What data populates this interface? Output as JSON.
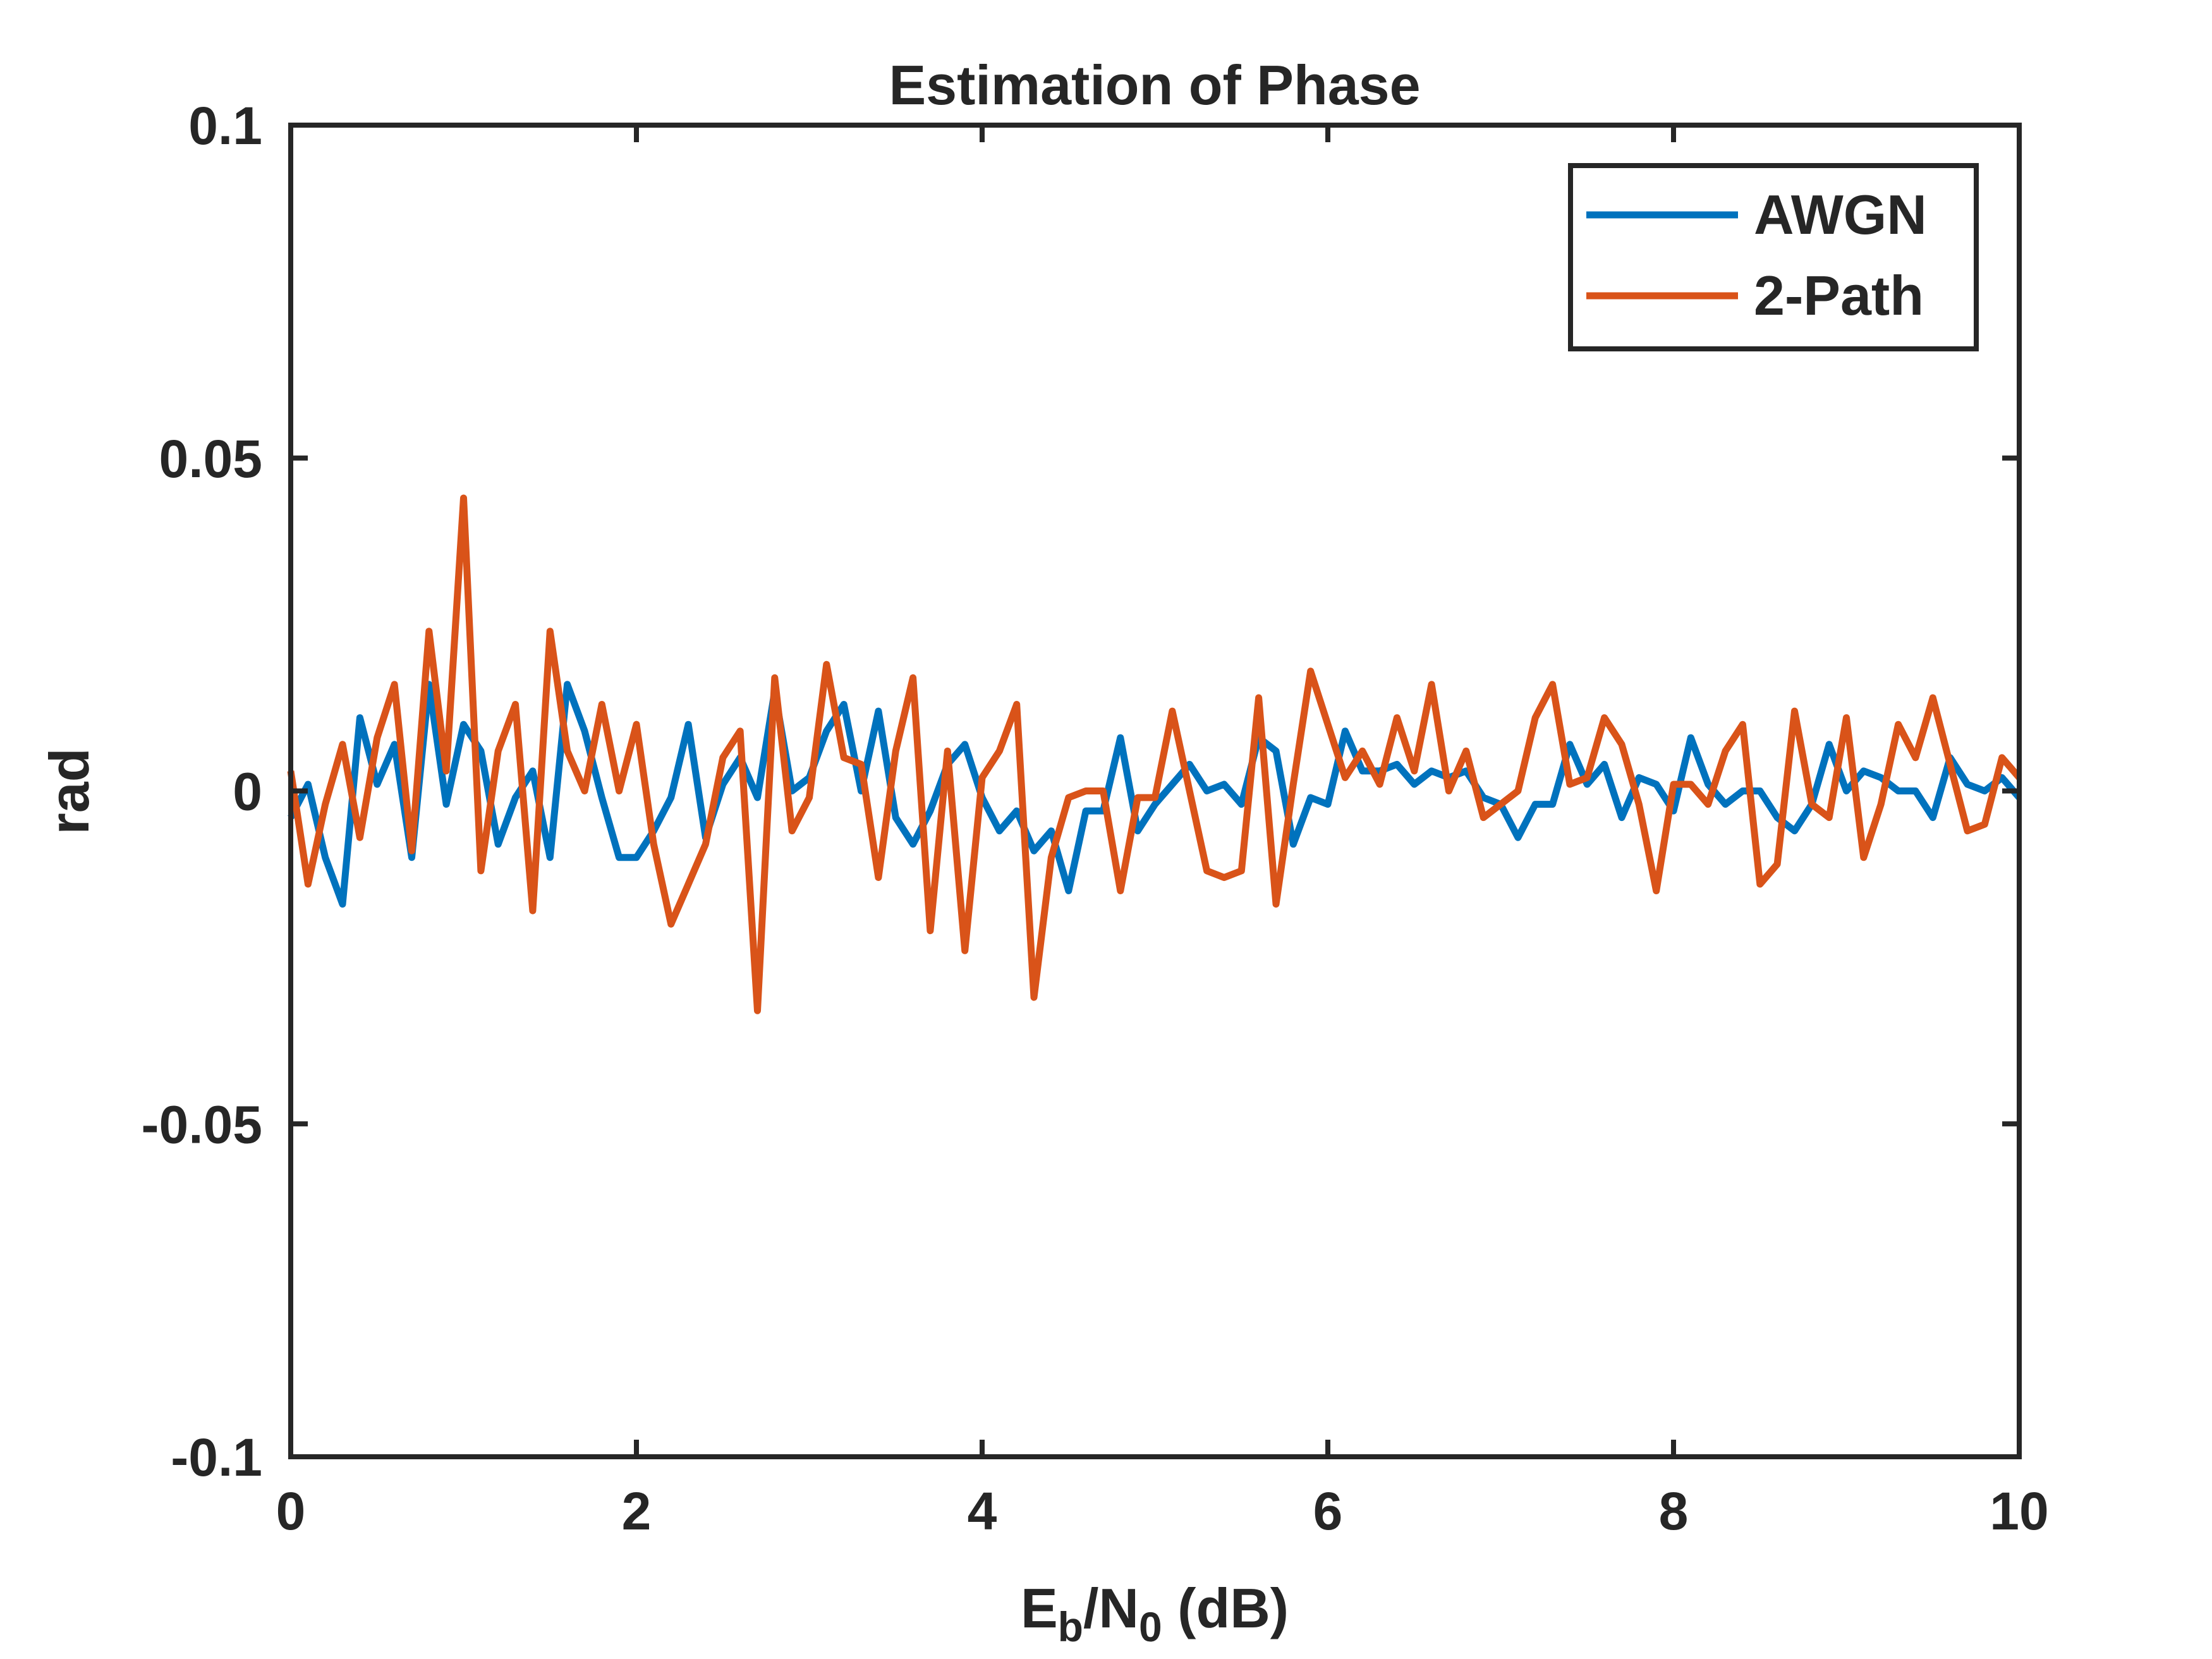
{
  "chart_data": {
    "type": "line",
    "title": "Estimation of Phase",
    "xlabel": {
      "main": "E",
      "sub1": "b",
      "mid": "/N",
      "sub2": "0",
      "tail": " (dB)"
    },
    "ylabel": "rad",
    "xlim": [
      0,
      10
    ],
    "ylim": [
      -0.1,
      0.1
    ],
    "xticks": [
      0,
      2,
      4,
      6,
      8,
      10
    ],
    "xtick_labels": [
      "0",
      "2",
      "4",
      "6",
      "8",
      "10"
    ],
    "yticks": [
      0.1,
      0.05,
      0,
      -0.05,
      -0.1
    ],
    "ytick_labels": [
      "0.1",
      "0.05",
      "0",
      "-0.05",
      "-0.1"
    ],
    "grid": false,
    "legend_position": "top-right",
    "x_step": 0.1,
    "series": [
      {
        "name": "AWGN",
        "color": "#0072BD",
        "values": [
          -0.004,
          0.001,
          -0.01,
          -0.017,
          0.011,
          0.001,
          0.007,
          -0.01,
          0.016,
          -0.002,
          0.01,
          0.006,
          -0.008,
          -0.001,
          0.003,
          -0.01,
          0.016,
          0.009,
          -0.001,
          -0.01,
          -0.01,
          -0.006,
          -0.001,
          0.01,
          -0.007,
          0.001,
          0.005,
          -0.001,
          0.015,
          0.0,
          0.002,
          0.009,
          0.013,
          0.0,
          0.012,
          -0.004,
          -0.008,
          -0.003,
          0.004,
          0.007,
          -0.001,
          -0.006,
          -0.003,
          -0.009,
          -0.006,
          -0.015,
          -0.003,
          -0.003,
          0.008,
          -0.006,
          -0.002,
          0.001,
          0.004,
          0.0,
          0.001,
          -0.002,
          0.008,
          0.006,
          -0.008,
          -0.001,
          -0.002,
          0.009,
          0.003,
          0.003,
          0.004,
          0.001,
          0.003,
          0.002,
          0.003,
          -0.001,
          -0.002,
          -0.007,
          -0.002,
          -0.002,
          0.007,
          0.001,
          0.004,
          -0.004,
          0.002,
          0.001,
          -0.003,
          0.008,
          0.001,
          -0.002,
          0.0,
          0.0,
          -0.004,
          -0.006,
          -0.002,
          0.007,
          0.0,
          0.003,
          0.002,
          0.0,
          0.0,
          -0.004,
          0.005,
          0.001,
          0.0,
          0.002,
          -0.001
        ]
      },
      {
        "name": "2-Path",
        "color": "#D95319",
        "values": [
          0.003,
          -0.014,
          -0.002,
          0.007,
          -0.007,
          0.008,
          0.016,
          -0.009,
          0.024,
          0.003,
          0.044,
          -0.012,
          0.006,
          0.013,
          -0.018,
          0.024,
          0.006,
          0.0,
          0.013,
          0.0,
          0.01,
          -0.008,
          -0.02,
          -0.014,
          -0.008,
          0.005,
          0.009,
          -0.033,
          0.017,
          -0.006,
          -0.001,
          0.019,
          0.005,
          0.004,
          -0.013,
          0.006,
          0.017,
          -0.021,
          0.006,
          -0.024,
          0.002,
          0.006,
          0.013,
          -0.031,
          -0.01,
          -0.001,
          0.0,
          0.0,
          -0.015,
          -0.001,
          -0.001,
          0.012,
          0.0,
          -0.012,
          -0.013,
          -0.012,
          0.014,
          -0.017,
          0.001,
          0.018,
          0.01,
          0.002,
          0.006,
          0.001,
          0.011,
          0.003,
          0.016,
          0.0,
          0.006,
          -0.004,
          -0.002,
          0.0,
          0.011,
          0.016,
          0.001,
          0.002,
          0.011,
          0.007,
          -0.002,
          -0.015,
          0.001,
          0.001,
          -0.002,
          0.006,
          0.01,
          -0.014,
          -0.011,
          0.012,
          -0.002,
          -0.004,
          0.011,
          -0.01,
          -0.002,
          0.01,
          0.005,
          0.014,
          0.004,
          -0.006,
          -0.005,
          0.005,
          0.002
        ]
      }
    ]
  }
}
